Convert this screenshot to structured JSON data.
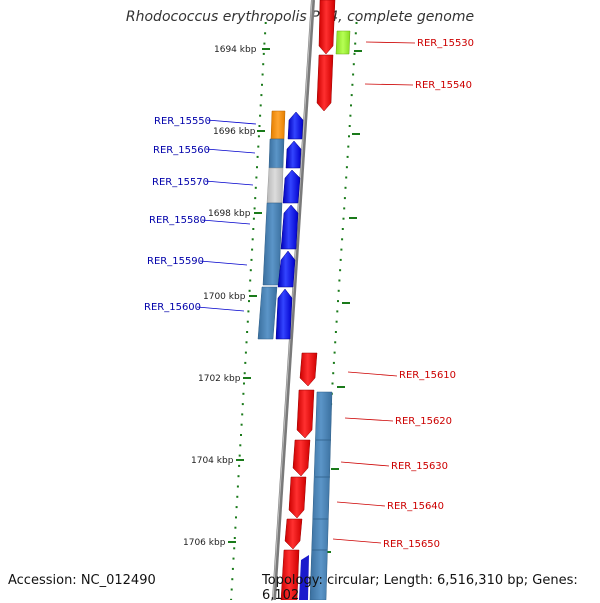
{
  "title": "Rhodococcus erythropolis PR4, complete genome",
  "footer": {
    "accession": "Accession: NC_012490",
    "summary": "Topology: circular; Length: 6,516,310 bp; Genes: 6,102"
  },
  "scale_labels": [
    "1694 kbp",
    "1696 kbp",
    "1698 kbp",
    "1700 kbp",
    "1702 kbp",
    "1704 kbp",
    "1706 kbp"
  ],
  "gene_labels_left": [
    "RER_15550",
    "RER_15560",
    "RER_15570",
    "RER_15580",
    "RER_15590",
    "RER_15600"
  ],
  "gene_labels_right": [
    "RER_15530",
    "RER_15540",
    "RER_15610",
    "RER_15620",
    "RER_15630",
    "RER_15640",
    "RER_15650"
  ],
  "colors": {
    "forward_cds": "#0000ee",
    "reverse_cds": "#ee0000",
    "gene": "#4682b4",
    "left_label": "#0000aa",
    "right_label": "#cc0000",
    "ticks": "#1a7a1a",
    "backbone": "#808080"
  }
}
